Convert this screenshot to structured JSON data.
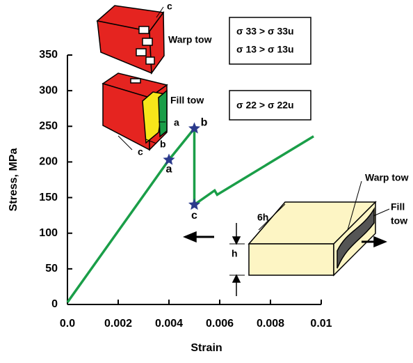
{
  "chart_data": {
    "type": "line",
    "xlabel": "Strain",
    "ylabel": "Stress, MPa",
    "x": [
      0,
      0.004,
      0.005,
      0.005,
      0.0058,
      0.0059,
      0.0097
    ],
    "values": [
      3,
      203,
      247,
      140,
      160,
      154,
      236
    ],
    "color": "#1a9e48",
    "xlim": [
      0,
      0.01
    ],
    "ylim": [
      0,
      350
    ],
    "xticks": [
      {
        "value": 0,
        "label": "0.0"
      },
      0.002,
      0.004,
      0.006,
      0.008,
      0.01
    ],
    "yticks": [
      0,
      50,
      100,
      150,
      200,
      250,
      300,
      350
    ],
    "marker_color": "#2b3a8c",
    "markers": [
      {
        "label": "a",
        "x": 0.004,
        "y": 203
      },
      {
        "label": "b",
        "x": 0.005,
        "y": 247
      },
      {
        "label": "c",
        "x": 0.005,
        "y": 140
      }
    ],
    "annotations": {
      "warp_tow": "Warp tow",
      "fill_tow": "Fill tow",
      "warp_box": [
        "σ 33 > σ 33u",
        "σ 13 > σ 13u"
      ],
      "fill_box": [
        "σ 22 > σ 22u"
      ],
      "warp_c": "c",
      "fill_a": "a",
      "fill_b": "b",
      "fill_c": "c",
      "inset_warp": "Warp tow",
      "inset_fill": [
        "Fill",
        "tow"
      ],
      "inset_6h": "6h",
      "inset_h": "h"
    }
  }
}
